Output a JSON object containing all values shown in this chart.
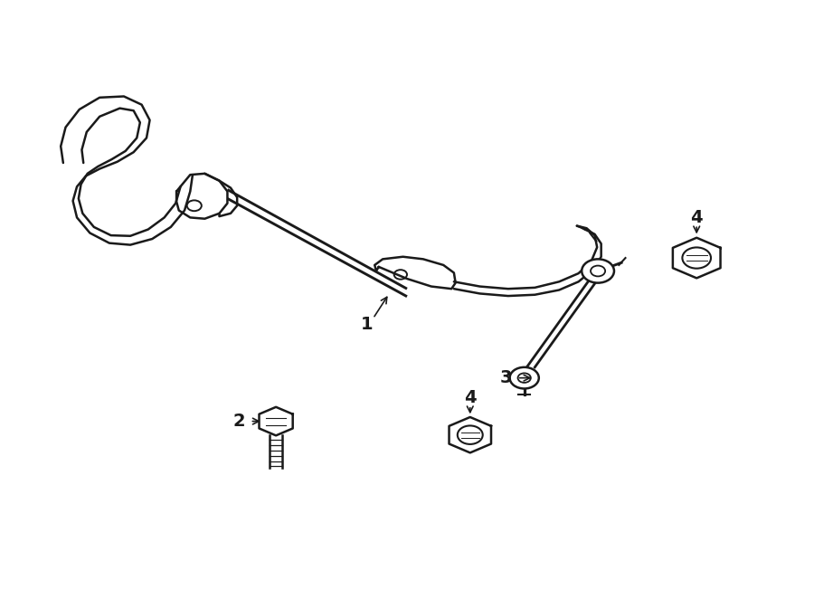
{
  "background_color": "#ffffff",
  "line_color": "#1a1a1a",
  "line_width": 1.8,
  "fig_width": 9.0,
  "fig_height": 6.62
}
